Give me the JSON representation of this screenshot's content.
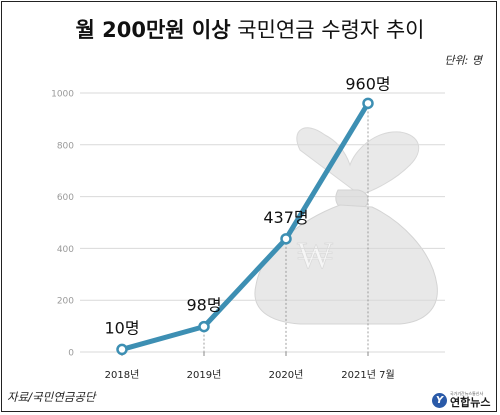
{
  "title_bold": "월 200만원 이상",
  "title_normal": "국민연금 수령자 추이",
  "unit_label": "단위: 명",
  "source_label": "자료/국민연금공단",
  "logo": {
    "mark": "Y",
    "small_text": "국가기간뉴스통신사",
    "name": "연합뉴스",
    "color": "#2a5aa8"
  },
  "chart_data": {
    "type": "line",
    "categories": [
      "2018년",
      "2019년",
      "2020년",
      "2021년 7월"
    ],
    "values": [
      10,
      98,
      437,
      960
    ],
    "data_labels": [
      "10명",
      "98명",
      "437명",
      "960명"
    ],
    "ylim": [
      0,
      1000
    ],
    "yticks": [
      0,
      200,
      400,
      600,
      800,
      1000
    ],
    "grid": true,
    "line_color": "#3d8fb3",
    "marker_fill": "#ffffff",
    "background_icon": "money-bag-won-icon"
  }
}
